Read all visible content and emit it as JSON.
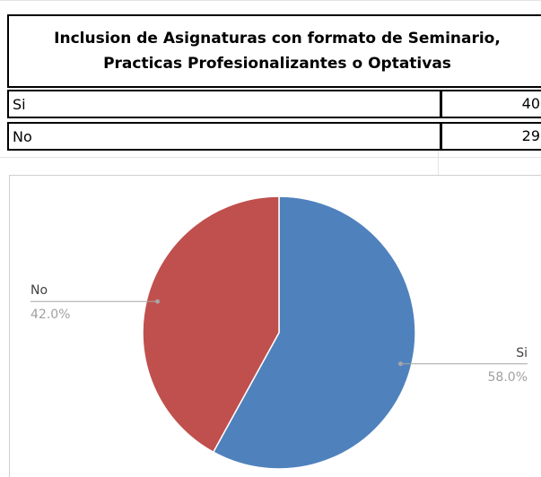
{
  "table": {
    "title": "Inclusion de Asignaturas con formato de Seminario, Practicas Profesionalizantes o Optativas",
    "rows": [
      [
        "Si",
        "40"
      ],
      [
        "No",
        "29"
      ]
    ]
  },
  "chart_data": {
    "type": "pie",
    "categories": [
      "Si",
      "No"
    ],
    "values": [
      58.0,
      42.0
    ],
    "value_labels": [
      "58.0%",
      "42.0%"
    ],
    "colors": [
      "#4f81bd",
      "#c0504d"
    ]
  }
}
